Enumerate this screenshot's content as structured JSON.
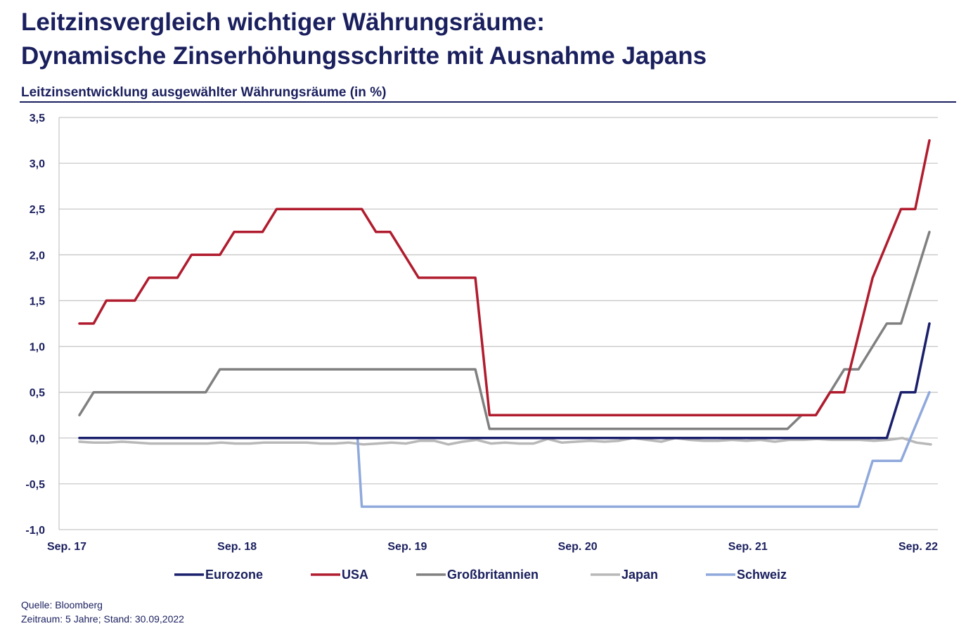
{
  "header": {
    "title_line1": "Leitzinsvergleich wichtiger Währungsräume:",
    "title_line2": "Dynamische Zinserhöhungsschritte mit Ausnahme Japans",
    "subtitle": "Leitzinsentwicklung ausgewählter Währungsräume (in %)"
  },
  "footer": {
    "source": "Quelle: Bloomberg",
    "period": "Zeitraum: 5 Jahre; Stand: 30.09,2022"
  },
  "chart_data": {
    "type": "line",
    "ylim": [
      -1.0,
      3.5
    ],
    "xlim": [
      0,
      60
    ],
    "y_ticks": [
      3.5,
      3.0,
      2.5,
      2.0,
      1.5,
      1.0,
      0.5,
      0.0,
      -0.5,
      -1.0
    ],
    "y_tick_labels": [
      "3,5",
      "3,0",
      "2,5",
      "2,0",
      "1,5",
      "1,0",
      "0,5",
      "0,0",
      "-0,5",
      "-1,0"
    ],
    "x_ticks": [
      0,
      12,
      24,
      36,
      48,
      60
    ],
    "x_tick_labels": [
      "Sep. 17",
      "Sep. 18",
      "Sep. 19",
      "Sep. 20",
      "Sep. 21",
      "Sep. 22"
    ],
    "grid": true,
    "legend_position": "bottom",
    "series": [
      {
        "name": "Eurozone",
        "color": "#1a1f6b",
        "points": [
          [
            0,
            0
          ],
          [
            56.9,
            0
          ],
          [
            57.9,
            0.5
          ],
          [
            58.9,
            0.5
          ],
          [
            59.9,
            1.25
          ]
        ]
      },
      {
        "name": "USA",
        "color": "#b01c2e",
        "points": [
          [
            0,
            1.25
          ],
          [
            1,
            1.25
          ],
          [
            1.9,
            1.5
          ],
          [
            3.9,
            1.5
          ],
          [
            4.9,
            1.75
          ],
          [
            6.9,
            1.75
          ],
          [
            7.9,
            2.0
          ],
          [
            9.9,
            2.0
          ],
          [
            10.9,
            2.25
          ],
          [
            12.9,
            2.25
          ],
          [
            13.9,
            2.5
          ],
          [
            19.9,
            2.5
          ],
          [
            20.9,
            2.25
          ],
          [
            21.9,
            2.25
          ],
          [
            23.9,
            1.75
          ],
          [
            27.9,
            1.75
          ],
          [
            28.9,
            0.25
          ],
          [
            51.9,
            0.25
          ],
          [
            52.9,
            0.5
          ],
          [
            53.9,
            0.5
          ],
          [
            55.9,
            1.75
          ],
          [
            57.9,
            2.5
          ],
          [
            58.9,
            2.5
          ],
          [
            59.9,
            3.25
          ]
        ]
      },
      {
        "name": "Großbritannien",
        "color": "#808080",
        "points": [
          [
            0,
            0.25
          ],
          [
            1,
            0.5
          ],
          [
            8.9,
            0.5
          ],
          [
            9.9,
            0.75
          ],
          [
            27.9,
            0.75
          ],
          [
            28.9,
            0.1
          ],
          [
            49.9,
            0.1
          ],
          [
            50.9,
            0.25
          ],
          [
            51.9,
            0.25
          ],
          [
            52.9,
            0.5
          ],
          [
            53.9,
            0.75
          ],
          [
            54.9,
            0.75
          ],
          [
            55.9,
            1.0
          ],
          [
            56.9,
            1.25
          ],
          [
            57.9,
            1.25
          ],
          [
            59.9,
            2.25
          ]
        ]
      },
      {
        "name": "Japan",
        "color": "#b8b8b8",
        "points": [
          [
            0,
            -0.04
          ],
          [
            1,
            -0.05
          ],
          [
            2,
            -0.05
          ],
          [
            3,
            -0.04
          ],
          [
            4,
            -0.05
          ],
          [
            5,
            -0.06
          ],
          [
            6,
            -0.06
          ],
          [
            7,
            -0.06
          ],
          [
            8,
            -0.06
          ],
          [
            9,
            -0.06
          ],
          [
            10,
            -0.05
          ],
          [
            11,
            -0.06
          ],
          [
            12,
            -0.06
          ],
          [
            13,
            -0.05
          ],
          [
            14,
            -0.05
          ],
          [
            15,
            -0.05
          ],
          [
            16,
            -0.05
          ],
          [
            17,
            -0.06
          ],
          [
            18,
            -0.06
          ],
          [
            19,
            -0.05
          ],
          [
            20,
            -0.07
          ],
          [
            21,
            -0.06
          ],
          [
            22,
            -0.05
          ],
          [
            23,
            -0.06
          ],
          [
            24,
            -0.03
          ],
          [
            25,
            -0.03
          ],
          [
            26,
            -0.07
          ],
          [
            27,
            -0.04
          ],
          [
            28,
            -0.02
          ],
          [
            29,
            -0.06
          ],
          [
            30,
            -0.05
          ],
          [
            31,
            -0.06
          ],
          [
            32,
            -0.06
          ],
          [
            33,
            -0.01
          ],
          [
            34,
            -0.05
          ],
          [
            35,
            -0.04
          ],
          [
            36,
            -0.03
          ],
          [
            37,
            -0.04
          ],
          [
            38,
            -0.03
          ],
          [
            39,
            0.0
          ],
          [
            40,
            -0.02
          ],
          [
            41,
            -0.04
          ],
          [
            42,
            0.0
          ],
          [
            43,
            -0.02
          ],
          [
            44,
            -0.03
          ],
          [
            45,
            -0.03
          ],
          [
            46,
            -0.02
          ],
          [
            47,
            -0.03
          ],
          [
            48,
            -0.02
          ],
          [
            49,
            -0.04
          ],
          [
            50,
            -0.02
          ],
          [
            51,
            -0.02
          ],
          [
            52,
            -0.01
          ],
          [
            53,
            -0.02
          ],
          [
            54,
            -0.02
          ],
          [
            55,
            -0.02
          ],
          [
            56,
            -0.03
          ],
          [
            57,
            -0.02
          ],
          [
            58,
            0.0
          ],
          [
            59,
            -0.05
          ],
          [
            60,
            -0.07
          ]
        ]
      },
      {
        "name": "Schweiz",
        "color": "#8fa9dc",
        "points": [
          [
            0,
            0
          ],
          [
            19.6,
            0
          ],
          [
            19.9,
            -0.75
          ],
          [
            54.9,
            -0.75
          ],
          [
            55.9,
            -0.25
          ],
          [
            57.9,
            -0.25
          ],
          [
            59.9,
            0.5
          ]
        ]
      }
    ]
  }
}
